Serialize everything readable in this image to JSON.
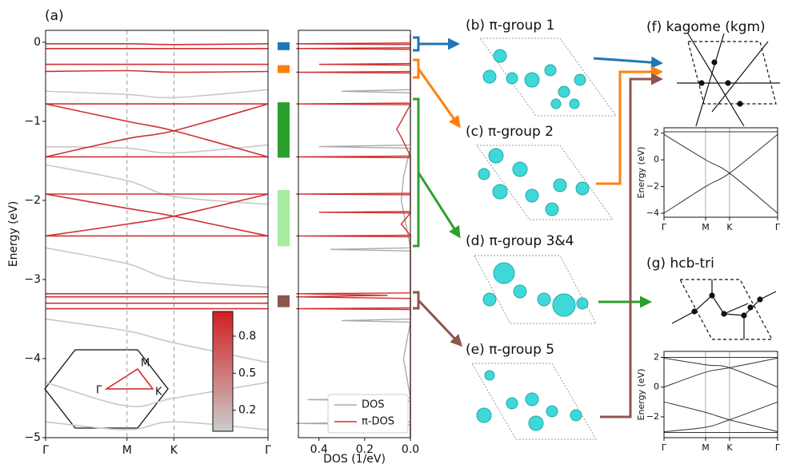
{
  "a": {
    "label": "(a)",
    "ylabel": "Energy (eV)",
    "ylim": [
      -5,
      0.15
    ],
    "yticks": [
      0,
      {
        "value": -1,
        "label": "−1"
      },
      {
        "value": -2,
        "label": "−2"
      },
      {
        "value": -3,
        "label": "−3"
      },
      {
        "value": -4,
        "label": "−4"
      },
      {
        "value": -5,
        "label": "−5"
      }
    ],
    "xticks": [
      {
        "value": 0,
        "label": "Γ"
      },
      {
        "value": 0.366,
        "label": "M"
      },
      {
        "value": 0.577,
        "label": "K"
      },
      {
        "value": 1,
        "label": "Γ"
      }
    ],
    "bands": [
      {
        "color": "#c8c8c8",
        "values": [
          -0.62,
          -0.66,
          -0.7,
          -0.6
        ]
      },
      {
        "color": "#c8c8c8",
        "values": [
          -1.32,
          -1.34,
          -1.4,
          -1.3
        ]
      },
      {
        "color": "#c8c8c8",
        "values": [
          -1.55,
          -1.75,
          -1.95,
          -2.05
        ]
      },
      {
        "color": "#c8c8c8",
        "values": [
          -2.6,
          -2.8,
          -3.0,
          -3.1
        ]
      },
      {
        "color": "#c8c8c8",
        "values": [
          -3.5,
          -3.65,
          -3.8,
          -4.05
        ]
      },
      {
        "color": "#c8c8c8",
        "values": [
          -4.3,
          -4.6,
          -4.5,
          -4.3
        ]
      },
      {
        "color": "#c8c8c8",
        "values": [
          -4.8,
          -4.9,
          -4.8,
          -4.9
        ]
      },
      {
        "color": "#d03030",
        "values": [
          -0.02,
          -0.02,
          -0.03,
          -0.02
        ]
      },
      {
        "color": "#d03030",
        "values": [
          -0.08,
          -0.08,
          -0.08,
          -0.08
        ]
      },
      {
        "color": "#d03030",
        "values": [
          -0.28,
          -0.28,
          -0.28,
          -0.28
        ]
      },
      {
        "color": "#d03030",
        "values": [
          -0.37,
          -0.36,
          -0.38,
          -0.37
        ]
      },
      {
        "color": "#d03030",
        "values": [
          -0.78,
          -0.78,
          -0.78,
          -0.78
        ]
      },
      {
        "color": "#d03030",
        "values": [
          -0.78,
          -1.0,
          -1.12,
          -1.45
        ]
      },
      {
        "color": "#d03030",
        "values": [
          -1.45,
          -1.22,
          -1.12,
          -0.78
        ]
      },
      {
        "color": "#d03030",
        "values": [
          -1.45,
          -1.45,
          -1.45,
          -1.45
        ]
      },
      {
        "color": "#d03030",
        "values": [
          -1.92,
          -1.92,
          -1.92,
          -1.92
        ]
      },
      {
        "color": "#d03030",
        "values": [
          -1.92,
          -2.1,
          -2.2,
          -2.45
        ]
      },
      {
        "color": "#d03030",
        "values": [
          -2.45,
          -2.3,
          -2.2,
          -1.92
        ]
      },
      {
        "color": "#d03030",
        "values": [
          -2.45,
          -2.45,
          -2.45,
          -2.45
        ]
      },
      {
        "color": "#d03030",
        "values": [
          -3.18,
          -3.18,
          -3.18,
          -3.18
        ]
      },
      {
        "color": "#d03030",
        "values": [
          -3.22,
          -3.22,
          -3.22,
          -3.22
        ]
      },
      {
        "color": "#d03030",
        "values": [
          -3.3,
          -3.3,
          -3.3,
          -3.3
        ]
      },
      {
        "color": "#d03030",
        "values": [
          -3.37,
          -3.37,
          -3.37,
          -3.37
        ]
      }
    ],
    "colorbar": {
      "lim": [
        0.03,
        1.0
      ],
      "ticks": [
        0.8,
        0.5,
        0.2
      ],
      "colors": [
        "#cccccc",
        "#d02020"
      ]
    },
    "bz": {
      "labels": [
        "M",
        "Γ",
        "K"
      ]
    },
    "groups": [
      {
        "color": "#1f77b4",
        "range": [
          -0.1,
          0
        ]
      },
      {
        "color": "#ff7f0e",
        "range": [
          -0.39,
          -0.29
        ]
      },
      {
        "color": "#2ca02c",
        "range": [
          -1.46,
          -0.76
        ]
      },
      {
        "color": "#a6eba0",
        "range": [
          -2.58,
          -1.87
        ]
      },
      {
        "color": "#8c564b",
        "range": [
          -3.35,
          -3.2
        ]
      }
    ]
  },
  "dos": {
    "xlabel": "DOS (1/eV)",
    "xlim": [
      0.49,
      0
    ],
    "xticks": [
      0.4,
      0.2,
      {
        "value": 0,
        "label": "0.0"
      }
    ],
    "series": [
      {
        "name": "DOS",
        "color": "#aaaaaa",
        "energy": [
          0.1,
          -0.6,
          -0.62,
          -0.64,
          -1.3,
          -1.32,
          -1.34,
          -1.7,
          -2.0,
          -2.6,
          -2.62,
          -2.64,
          -3.5,
          -3.52,
          -3.54,
          -4.0,
          -4.5,
          -4.52,
          -4.54,
          -4.8,
          -4.82,
          -4.84,
          -5
        ],
        "values": [
          0,
          0,
          0.3,
          0,
          0,
          0.4,
          0,
          0.03,
          0.04,
          0,
          0.35,
          0,
          0,
          0.3,
          0,
          0.03,
          0,
          0.45,
          0,
          0,
          0.5,
          0,
          0
        ]
      },
      {
        "name": "π-DOS",
        "color": "#d03030",
        "energy": [
          0.1,
          -0.01,
          -0.02,
          -0.03,
          -0.07,
          -0.08,
          -0.09,
          -0.27,
          -0.28,
          -0.29,
          -0.37,
          -0.38,
          -0.39,
          -0.77,
          -0.78,
          -0.79,
          -1.0,
          -1.1,
          -1.2,
          -1.44,
          -1.45,
          -1.46,
          -1.91,
          -1.92,
          -1.93,
          -2.14,
          -2.15,
          -2.16,
          -2.3,
          -2.44,
          -2.45,
          -2.46,
          -3.17,
          -3.18,
          -3.2,
          -3.22,
          -3.24,
          -3.36,
          -3.37,
          -3.38,
          -5
        ],
        "values": [
          0,
          0,
          0.5,
          0,
          0,
          0.5,
          0,
          0,
          0.4,
          0,
          0,
          0.5,
          0,
          0,
          0.5,
          0,
          0.04,
          0.06,
          0.04,
          0,
          0.5,
          0,
          0,
          0.5,
          0,
          0,
          0.4,
          0,
          0.04,
          0,
          0.5,
          0,
          0,
          0.5,
          0.1,
          0.5,
          0,
          0,
          0.5,
          0,
          0
        ]
      }
    ]
  },
  "groups_text": {
    "b": "(b) π-group 1",
    "c": "(c) π-group 2",
    "d": "(d) π-group 3&4",
    "e": "(e) π-group 5"
  },
  "f": {
    "label": "(f) kagome (kgm)",
    "ylabel": "Energy (eV)",
    "ylim": [
      -4.3,
      2.4
    ],
    "yticks": [
      2,
      0,
      {
        "value": -2,
        "label": "−2"
      },
      {
        "value": -4,
        "label": "−4"
      }
    ],
    "xticks": [
      {
        "value": 0,
        "label": "Γ"
      },
      {
        "value": 0.366,
        "label": "M"
      },
      {
        "value": 0.577,
        "label": "K"
      },
      {
        "value": 1,
        "label": "Γ"
      }
    ],
    "bands": [
      {
        "color": "#333333",
        "values": [
          2.1,
          2.1,
          2.1,
          2.1
        ]
      },
      {
        "color": "#333333",
        "values": [
          1.9,
          0,
          -1,
          -4
        ]
      },
      {
        "color": "#333333",
        "values": [
          -4,
          -2,
          -1,
          1.9
        ]
      }
    ]
  },
  "g": {
    "label": "(g) hcb-tri",
    "ylabel": "Energy (eV)",
    "ylim": [
      -3.4,
      2.4
    ],
    "yticks": [
      2,
      0,
      {
        "value": -2,
        "label": "−2"
      }
    ],
    "xticks": [
      {
        "value": 0,
        "label": "Γ"
      },
      {
        "value": 0.366,
        "label": "M"
      },
      {
        "value": 0.577,
        "label": "K"
      },
      {
        "value": 1,
        "label": "Γ"
      }
    ],
    "bands": [
      {
        "color": "#333333",
        "values": [
          2,
          2,
          2,
          2
        ]
      },
      {
        "color": "#333333",
        "values": [
          0,
          1,
          1.3,
          1.95
        ]
      },
      {
        "color": "#333333",
        "values": [
          1.95,
          1.5,
          1.3,
          0
        ]
      },
      {
        "color": "#333333",
        "values": [
          -1,
          -1.7,
          -2.2,
          -3
        ]
      },
      {
        "color": "#333333",
        "values": [
          -3,
          -2.7,
          -2.2,
          -1
        ]
      },
      {
        "color": "#333333",
        "values": [
          -3.05,
          -3.05,
          -3.05,
          -3.05
        ]
      }
    ]
  }
}
